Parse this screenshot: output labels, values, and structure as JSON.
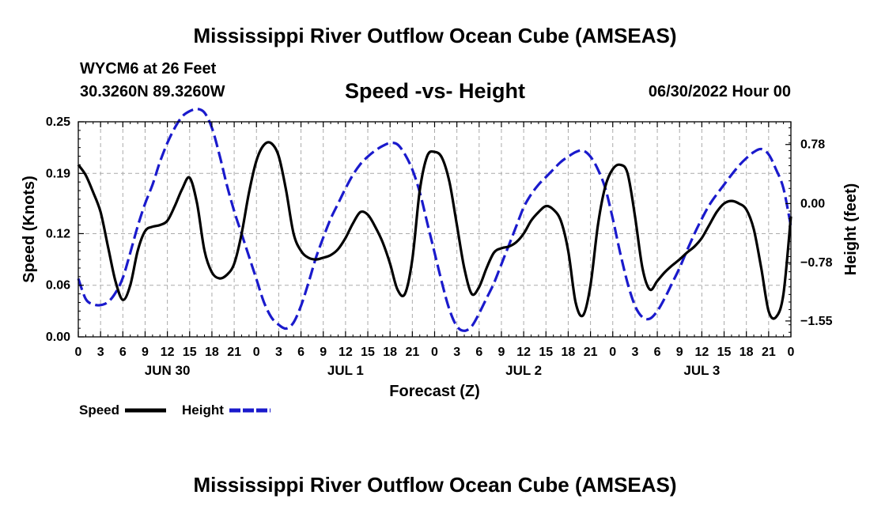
{
  "header": {
    "main_title": "Mississippi River Outflow Ocean Cube (AMSEAS)",
    "station": "WYCM6 at 26 Feet",
    "coords": "30.3260N  89.3260W",
    "subtitle": "Speed -vs- Height",
    "datetime": "06/30/2022 Hour 00"
  },
  "footer": {
    "repeat_title": "Mississippi River Outflow Ocean Cube (AMSEAS)"
  },
  "legend": {
    "speed_label": "Speed",
    "height_label": "Height",
    "speed_color": "#000000",
    "height_color": "#1a1acc"
  },
  "chart_data": {
    "type": "line",
    "title": "Speed -vs- Height",
    "xlabel": "Forecast (Z)",
    "ylabel": "Speed (Knots)",
    "y2label": "Height (feet)",
    "xlim": [
      0,
      96
    ],
    "ylim": [
      0,
      0.25
    ],
    "y2lim": [
      -1.76,
      1.08
    ],
    "x_ticks": [
      0,
      3,
      6,
      9,
      12,
      15,
      18,
      21,
      24,
      27,
      30,
      33,
      36,
      39,
      42,
      45,
      48,
      51,
      54,
      57,
      60,
      63,
      66,
      69,
      72,
      75,
      78,
      81,
      84,
      87,
      90,
      93,
      96
    ],
    "x_tick_labels": [
      "0",
      "3",
      "6",
      "9",
      "12",
      "15",
      "18",
      "21",
      "0",
      "3",
      "6",
      "9",
      "12",
      "15",
      "18",
      "21",
      "0",
      "3",
      "6",
      "9",
      "12",
      "15",
      "18",
      "21",
      "0",
      "3",
      "6",
      "9",
      "12",
      "15",
      "18",
      "21",
      "0"
    ],
    "day_labels": [
      {
        "x": 12,
        "label": "JUN 30"
      },
      {
        "x": 36,
        "label": "JUL 1"
      },
      {
        "x": 60,
        "label": "JUL 2"
      },
      {
        "x": 84,
        "label": "JUL 3"
      }
    ],
    "y_ticks": [
      0.0,
      0.06,
      0.12,
      0.19,
      0.25
    ],
    "y_tick_labels": [
      "0.00",
      "0.06",
      "0.12",
      "0.19",
      "0.25"
    ],
    "y2_ticks": [
      0.78,
      0.0,
      -0.78,
      -1.55
    ],
    "y2_tick_labels": [
      "0.78",
      "0.00",
      "−0.78",
      "−1.55"
    ],
    "grid": true,
    "legend_position": "bottom-left",
    "series": [
      {
        "name": "Speed",
        "axis": "left",
        "color": "#000000",
        "style": "solid",
        "x": [
          0,
          1,
          2,
          3,
          4,
          5,
          6,
          7,
          8,
          9,
          10,
          11,
          12,
          13,
          14,
          15,
          16,
          17,
          18,
          19,
          20,
          21,
          22,
          23,
          24,
          25,
          26,
          27,
          28,
          29,
          30,
          31,
          32,
          33,
          34,
          35,
          36,
          37,
          38,
          39,
          40,
          41,
          42,
          43,
          44,
          45,
          46,
          47,
          48,
          49,
          50,
          51,
          52,
          53,
          54,
          55,
          56,
          57,
          58,
          59,
          60,
          61,
          62,
          63,
          64,
          65,
          66,
          67,
          68,
          69,
          70,
          71,
          72,
          73,
          74,
          75,
          76,
          77,
          78,
          79,
          80,
          81,
          82,
          83,
          84,
          85,
          86,
          87,
          88,
          89,
          90,
          91,
          92,
          93,
          94,
          95,
          96
        ],
        "values": [
          0.2,
          0.188,
          0.168,
          0.145,
          0.105,
          0.065,
          0.043,
          0.06,
          0.1,
          0.123,
          0.128,
          0.13,
          0.135,
          0.152,
          0.172,
          0.185,
          0.155,
          0.1,
          0.075,
          0.068,
          0.072,
          0.085,
          0.12,
          0.168,
          0.205,
          0.223,
          0.225,
          0.21,
          0.17,
          0.12,
          0.1,
          0.092,
          0.09,
          0.092,
          0.095,
          0.102,
          0.115,
          0.132,
          0.145,
          0.142,
          0.128,
          0.11,
          0.085,
          0.055,
          0.05,
          0.09,
          0.17,
          0.21,
          0.215,
          0.208,
          0.18,
          0.13,
          0.08,
          0.05,
          0.058,
          0.08,
          0.098,
          0.103,
          0.105,
          0.11,
          0.12,
          0.135,
          0.145,
          0.152,
          0.148,
          0.135,
          0.1,
          0.04,
          0.025,
          0.06,
          0.13,
          0.175,
          0.195,
          0.2,
          0.19,
          0.14,
          0.08,
          0.055,
          0.065,
          0.075,
          0.083,
          0.09,
          0.098,
          0.105,
          0.115,
          0.13,
          0.145,
          0.155,
          0.158,
          0.155,
          0.148,
          0.125,
          0.08,
          0.03,
          0.023,
          0.05,
          0.14
        ]
      },
      {
        "name": "Height",
        "axis": "right",
        "color": "#1a1acc",
        "style": "dashed",
        "x": [
          0,
          1,
          2,
          3,
          4,
          5,
          6,
          7,
          8,
          9,
          10,
          11,
          12,
          13,
          14,
          15,
          16,
          17,
          18,
          19,
          20,
          21,
          22,
          23,
          24,
          25,
          26,
          27,
          28,
          29,
          30,
          31,
          32,
          33,
          34,
          35,
          36,
          37,
          38,
          39,
          40,
          41,
          42,
          43,
          44,
          45,
          46,
          47,
          48,
          49,
          50,
          51,
          52,
          53,
          54,
          55,
          56,
          57,
          58,
          59,
          60,
          61,
          62,
          63,
          64,
          65,
          66,
          67,
          68,
          69,
          70,
          71,
          72,
          73,
          74,
          75,
          76,
          77,
          78,
          79,
          80,
          81,
          82,
          83,
          84,
          85,
          86,
          87,
          88,
          89,
          90,
          91,
          92,
          93,
          94,
          95,
          96
        ],
        "values": [
          -0.99,
          -1.26,
          -1.33,
          -1.34,
          -1.3,
          -1.18,
          -0.98,
          -0.65,
          -0.3,
          0.0,
          0.25,
          0.55,
          0.8,
          1.0,
          1.15,
          1.22,
          1.25,
          1.2,
          1.0,
          0.65,
          0.25,
          -0.1,
          -0.4,
          -0.7,
          -1.0,
          -1.3,
          -1.5,
          -1.6,
          -1.65,
          -1.57,
          -1.35,
          -1.05,
          -0.72,
          -0.45,
          -0.2,
          0.0,
          0.2,
          0.38,
          0.52,
          0.62,
          0.7,
          0.76,
          0.8,
          0.78,
          0.65,
          0.45,
          0.15,
          -0.25,
          -0.65,
          -1.05,
          -1.4,
          -1.62,
          -1.68,
          -1.62,
          -1.45,
          -1.25,
          -1.05,
          -0.8,
          -0.55,
          -0.3,
          -0.05,
          0.12,
          0.25,
          0.35,
          0.45,
          0.55,
          0.62,
          0.68,
          0.7,
          0.62,
          0.45,
          0.2,
          -0.2,
          -0.65,
          -1.05,
          -1.35,
          -1.5,
          -1.52,
          -1.42,
          -1.25,
          -1.05,
          -0.85,
          -0.62,
          -0.4,
          -0.2,
          -0.02,
          0.12,
          0.25,
          0.38,
          0.5,
          0.6,
          0.68,
          0.72,
          0.65,
          0.45,
          0.2,
          -0.3
        ]
      }
    ]
  }
}
